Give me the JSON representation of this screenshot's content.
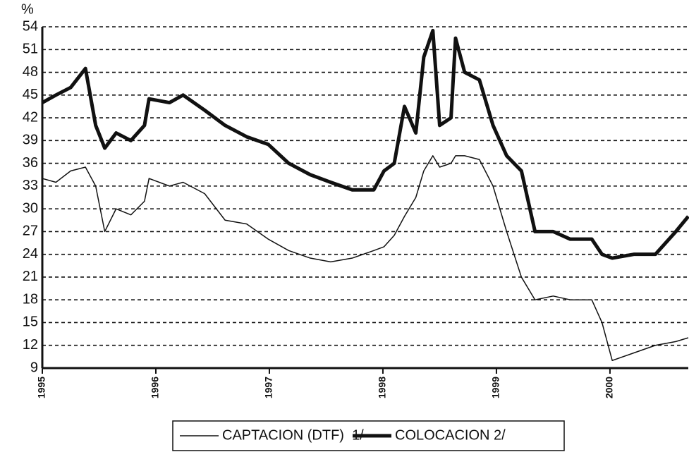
{
  "chart_data": {
    "type": "line",
    "y_label": "%",
    "x": [
      1995.0,
      1995.12,
      1995.25,
      1995.38,
      1995.47,
      1995.55,
      1995.65,
      1995.78,
      1995.9,
      1995.94,
      1996.12,
      1996.24,
      1996.43,
      1996.61,
      1996.8,
      1996.99,
      1997.17,
      1997.36,
      1997.54,
      1997.73,
      1997.92,
      1998.01,
      1998.1,
      1998.19,
      1998.29,
      1998.36,
      1998.44,
      1998.5,
      1998.6,
      1998.64,
      1998.72,
      1998.85,
      1998.97,
      1999.09,
      1999.22,
      1999.34,
      1999.5,
      1999.65,
      1999.84,
      1999.93,
      2000.02,
      2000.21,
      2000.4,
      2000.58,
      2000.69
    ],
    "series": [
      {
        "name": "CAPTACION (DTF)  1/",
        "color": "#111111",
        "width": 1.5,
        "values": [
          34,
          33.5,
          35,
          35.5,
          33,
          27,
          30,
          29.2,
          31,
          34,
          33,
          33.5,
          32,
          28.5,
          28,
          26,
          24.5,
          23.5,
          23,
          23.5,
          24.5,
          25,
          26.5,
          29,
          31.5,
          35,
          37,
          35.5,
          36,
          37,
          37,
          36.5,
          33,
          27,
          21,
          18,
          18.5,
          18,
          18,
          15,
          10,
          11,
          12,
          12.5,
          13
        ]
      },
      {
        "name": "COLOCACION 2/",
        "color": "#111111",
        "width": 5,
        "values": [
          44,
          45,
          46,
          48.5,
          41,
          38,
          40,
          39,
          41,
          44.5,
          44,
          45,
          43,
          41,
          39.5,
          38.5,
          36,
          34.5,
          33.5,
          32.5,
          32.5,
          35,
          36,
          43.5,
          40,
          50,
          53.5,
          41,
          42,
          52.5,
          48,
          47,
          41,
          37,
          35,
          27,
          27,
          26,
          26,
          24,
          23.5,
          24,
          24,
          27,
          29
        ]
      }
    ],
    "xlim": [
      1995,
      2000.69
    ],
    "xticks": [
      1995,
      1996,
      1997,
      1998,
      1999,
      2000
    ],
    "ylim": [
      9,
      54
    ],
    "yticks": [
      9,
      12,
      15,
      18,
      21,
      24,
      27,
      30,
      33,
      36,
      39,
      42,
      45,
      48,
      51,
      54
    ],
    "grid": true
  }
}
